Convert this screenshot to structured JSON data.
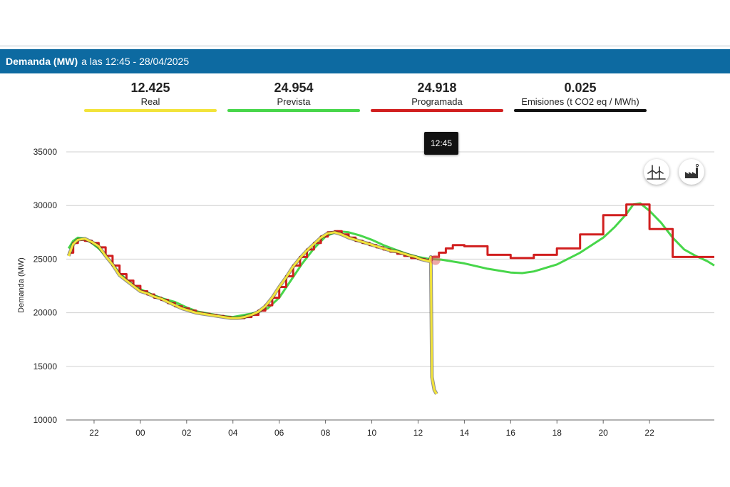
{
  "header": {
    "title": "Demanda (MW)",
    "subtitle": "a las 12:45 - 28/04/2025"
  },
  "stats": [
    {
      "value": "12.425",
      "label": "Real",
      "color": "#f2e33a"
    },
    {
      "value": "24.954",
      "label": "Prevista",
      "color": "#47d64a"
    },
    {
      "value": "24.918",
      "label": "Programada",
      "color": "#d11f1f"
    },
    {
      "value": "0.025",
      "label": "Emisiones (t CO2 eq / MWh)",
      "color": "#111111"
    }
  ],
  "tooltip": {
    "time": "12:45"
  },
  "icons": [
    "wind-turbine-icon",
    "factory-icon"
  ],
  "chart_data": {
    "type": "line",
    "ylabel": "Demanda (MW)",
    "ylim": [
      10000,
      35000
    ],
    "yticks": [
      10000,
      15000,
      20000,
      25000,
      30000,
      35000
    ],
    "xlim": [
      -3.2,
      24.8
    ],
    "xticks": [
      {
        "h": -2,
        "label": "22"
      },
      {
        "h": 0,
        "label": "00"
      },
      {
        "h": 2,
        "label": "02"
      },
      {
        "h": 4,
        "label": "04"
      },
      {
        "h": 6,
        "label": "06"
      },
      {
        "h": 8,
        "label": "08"
      },
      {
        "h": 10,
        "label": "10"
      },
      {
        "h": 12,
        "label": "12"
      },
      {
        "h": 14,
        "label": "14"
      },
      {
        "h": 16,
        "label": "16"
      },
      {
        "h": 18,
        "label": "18"
      },
      {
        "h": 20,
        "label": "20"
      },
      {
        "h": 22,
        "label": "22"
      }
    ],
    "series": [
      {
        "name": "Real",
        "color": "#f2e33a",
        "x": [
          -3.1,
          -2.9,
          -2.7,
          -2.4,
          -2.1,
          -1.8,
          -1.5,
          -1.2,
          -0.9,
          -0.6,
          -0.3,
          0.0,
          0.3,
          0.6,
          0.9,
          1.2,
          1.5,
          1.8,
          2.1,
          2.4,
          2.7,
          3.0,
          3.3,
          3.6,
          3.9,
          4.2,
          4.5,
          4.8,
          5.1,
          5.4,
          5.7,
          6.0,
          6.3,
          6.6,
          6.9,
          7.2,
          7.5,
          7.8,
          8.1,
          8.4,
          8.7,
          9.0,
          9.3,
          9.6,
          9.9,
          10.2,
          10.5,
          10.8,
          11.1,
          11.4,
          11.7,
          11.9,
          12.1,
          12.3,
          12.5,
          12.55,
          12.6,
          12.7,
          12.8
        ],
        "values": [
          25300,
          26400,
          26800,
          26900,
          26600,
          26200,
          25300,
          24500,
          23500,
          23000,
          22500,
          22000,
          21800,
          21500,
          21300,
          21000,
          20700,
          20400,
          20200,
          20000,
          19900,
          19800,
          19700,
          19600,
          19500,
          19500,
          19600,
          19800,
          20100,
          20600,
          21400,
          22400,
          23300,
          24300,
          25100,
          25800,
          26400,
          27000,
          27400,
          27500,
          27300,
          27000,
          26800,
          26600,
          26400,
          26200,
          26000,
          25800,
          25700,
          25500,
          25300,
          25200,
          25000,
          24900,
          24800,
          25200,
          14000,
          12800,
          12425
        ]
      },
      {
        "name": "Prevista",
        "color": "#47d64a",
        "x": [
          -3.1,
          -2.9,
          -2.7,
          -2.4,
          -2.1,
          -1.8,
          -1.5,
          -1.2,
          -0.9,
          -0.6,
          -0.3,
          0.0,
          0.5,
          1.0,
          1.5,
          2.0,
          2.5,
          3.0,
          3.5,
          4.0,
          4.5,
          5.0,
          5.5,
          6.0,
          6.5,
          7.0,
          7.5,
          8.0,
          8.5,
          9.0,
          9.5,
          10.0,
          10.5,
          11.0,
          11.5,
          12.0,
          12.5,
          13.0,
          14.0,
          15.0,
          16.0,
          16.5,
          17.0,
          18.0,
          19.0,
          20.0,
          20.5,
          21.0,
          21.3,
          21.6,
          22.0,
          22.5,
          23.0,
          23.5,
          24.0,
          24.5,
          24.8
        ],
        "values": [
          26000,
          26700,
          27000,
          26900,
          26500,
          26000,
          25300,
          24500,
          23700,
          23100,
          22600,
          22200,
          21700,
          21300,
          21000,
          20500,
          20100,
          19900,
          19700,
          19600,
          19800,
          20000,
          20400,
          21400,
          23000,
          24600,
          26000,
          27100,
          27600,
          27500,
          27200,
          26800,
          26300,
          25900,
          25500,
          25200,
          25000,
          24954,
          24600,
          24100,
          23750,
          23700,
          23850,
          24500,
          25600,
          27000,
          28000,
          29200,
          30100,
          30200,
          29500,
          28400,
          27000,
          25900,
          25300,
          24800,
          24400
        ]
      },
      {
        "name": "Programada",
        "color": "#d11f1f",
        "x": [
          -3.1,
          -2.9,
          -2.7,
          -2.4,
          -2.1,
          -1.8,
          -1.5,
          -1.2,
          -0.9,
          -0.6,
          -0.3,
          0.0,
          0.3,
          0.6,
          0.9,
          1.2,
          1.5,
          1.8,
          2.1,
          2.4,
          2.7,
          3.0,
          3.3,
          3.6,
          3.9,
          4.2,
          4.5,
          4.8,
          5.1,
          5.4,
          5.7,
          6.0,
          6.3,
          6.6,
          6.9,
          7.2,
          7.5,
          7.8,
          8.1,
          8.4,
          8.7,
          9.0,
          9.3,
          9.6,
          9.9,
          10.2,
          10.5,
          10.8,
          11.1,
          11.4,
          11.7,
          12.0,
          12.3,
          12.6,
          12.9,
          13.2,
          13.5,
          14.0,
          15.0,
          16.0,
          17.0,
          18.0,
          19.0,
          20.0,
          21.0,
          22.0,
          23.0,
          24.0,
          24.8
        ],
        "values": [
          25600,
          26500,
          26800,
          26700,
          26500,
          26100,
          25300,
          24400,
          23600,
          23000,
          22500,
          22000,
          21700,
          21400,
          21200,
          20900,
          20600,
          20400,
          20200,
          20000,
          19900,
          19800,
          19700,
          19600,
          19500,
          19500,
          19600,
          19800,
          20200,
          20700,
          21400,
          22400,
          23400,
          24400,
          25200,
          25900,
          26500,
          27100,
          27500,
          27600,
          27300,
          27000,
          26700,
          26500,
          26300,
          26100,
          25900,
          25700,
          25500,
          25300,
          25100,
          25000,
          24918,
          25200,
          25600,
          26000,
          26300,
          26200,
          25400,
          25100,
          25400,
          26000,
          27300,
          29100,
          30100,
          27800,
          25200,
          25200,
          25200
        ]
      }
    ]
  }
}
